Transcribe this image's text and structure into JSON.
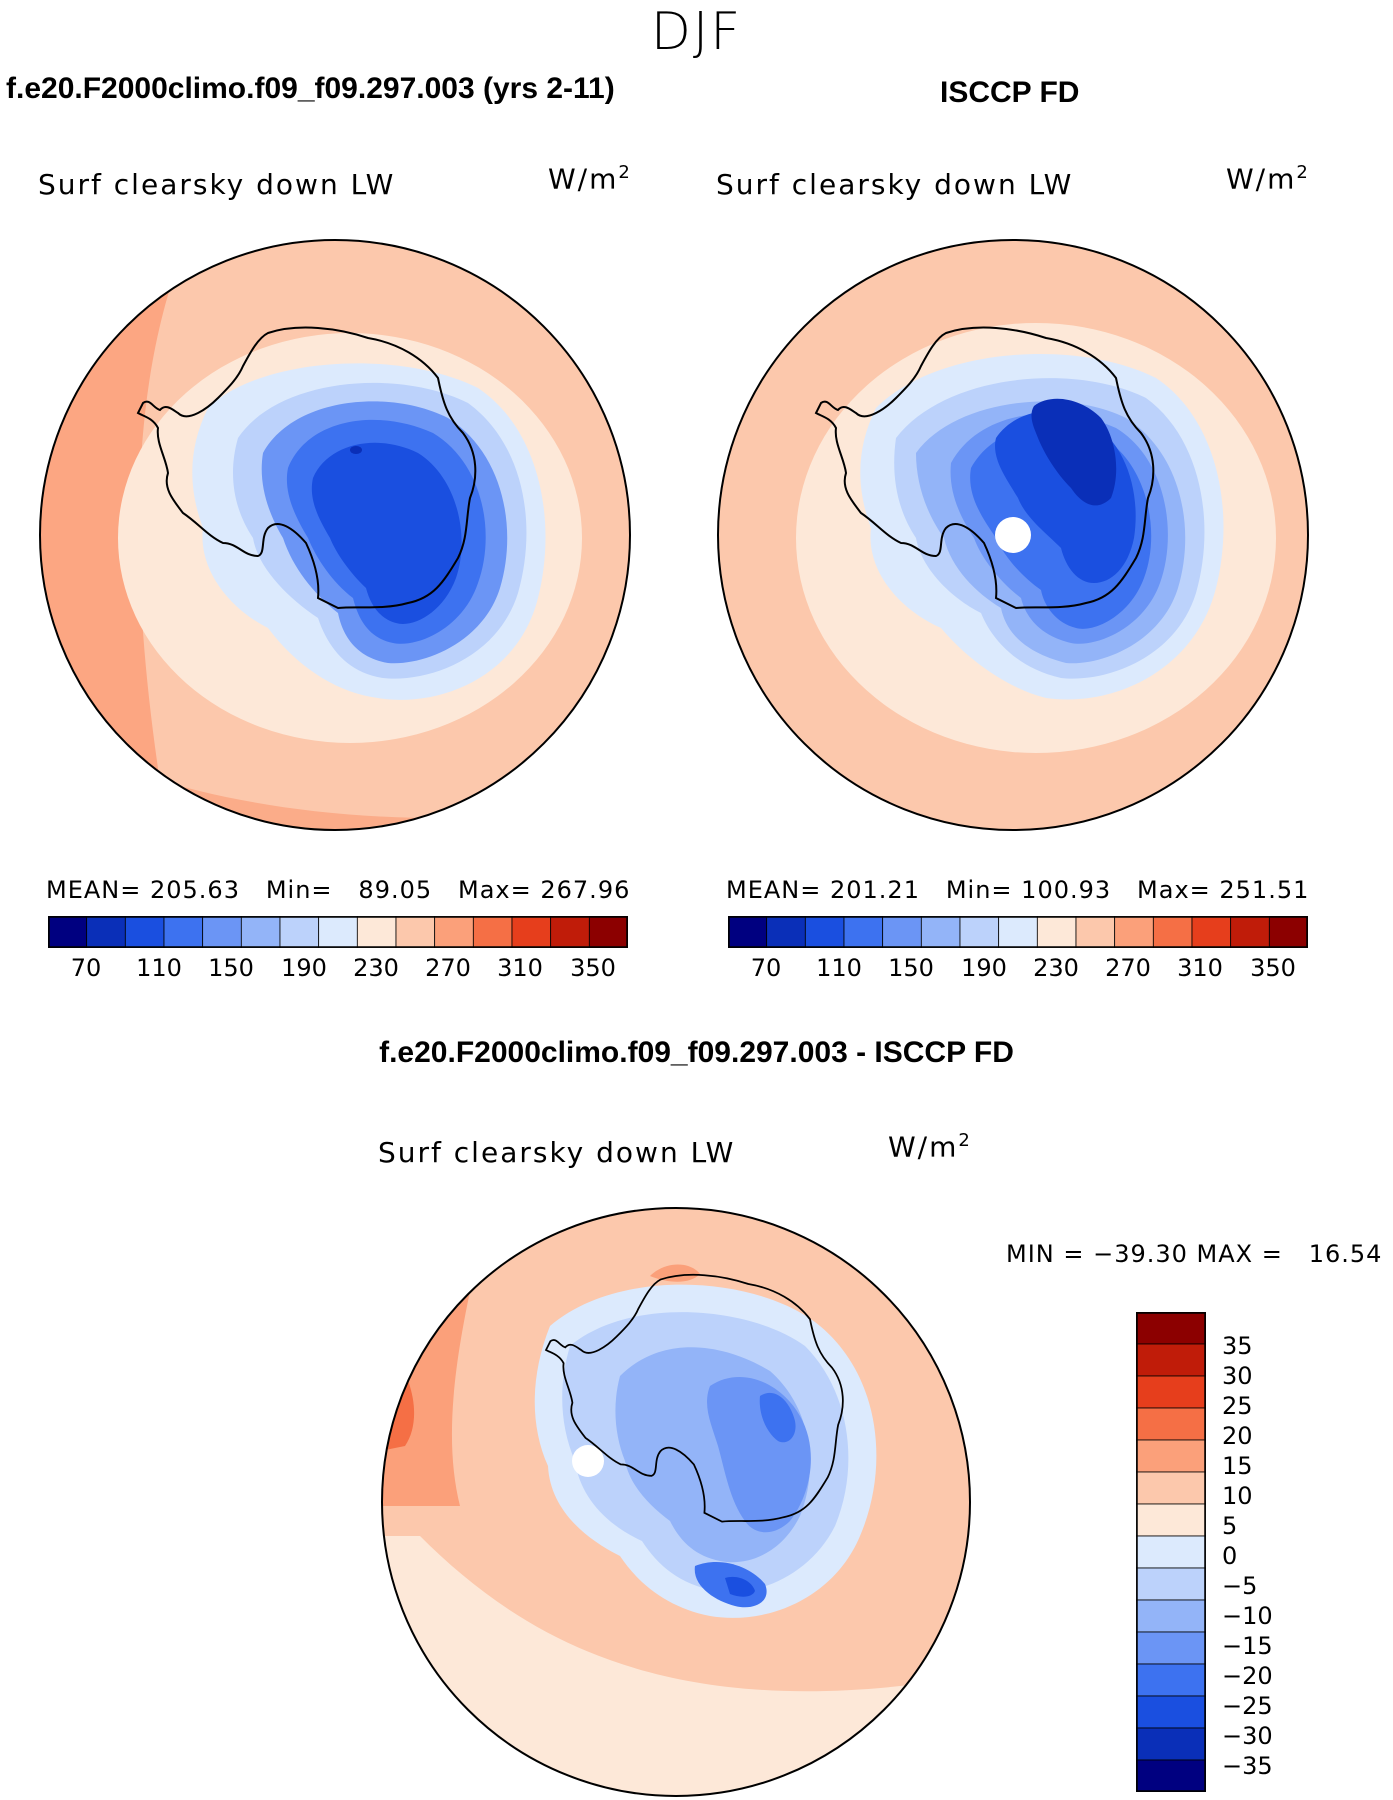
{
  "season": "DJF",
  "panels": [
    {
      "title": "f.e20.F2000climo.f09_f09.297.003 (yrs 2-11)",
      "variable": "Surf clearsky down LW",
      "units": "W/m",
      "units_exp": "2",
      "stats_text": "MEAN= 205.63   Min=   89.05   Max= 267.96",
      "mean": 205.63,
      "min": 89.05,
      "max": 267.96
    },
    {
      "title": "ISCCP FD",
      "variable": "Surf clearsky down LW",
      "units": "W/m",
      "units_exp": "2",
      "stats_text": "MEAN= 201.21   Min= 100.93   Max= 251.51",
      "mean": 201.21,
      "min": 100.93,
      "max": 251.51
    }
  ],
  "diff_panel": {
    "title": "f.e20.F2000climo.f09_f09.297.003 - ISCCP FD",
    "variable": "Surf clearsky down LW",
    "units": "W/m",
    "units_exp": "2",
    "minmax_text": "MIN = −39.30 MAX =   16.54",
    "min": -39.3,
    "max": 16.54
  },
  "colorbar_main": {
    "ticks": [
      "70",
      "110",
      "150",
      "190",
      "230",
      "270",
      "310",
      "350"
    ],
    "colors": [
      "#000080",
      "#0a2fb8",
      "#1a4fe0",
      "#3d72f0",
      "#6b95f5",
      "#93b4f8",
      "#bcd2fb",
      "#dceafd",
      "#fde8d8",
      "#fcc8ac",
      "#fba07a",
      "#f56f45",
      "#e63e1c",
      "#c01c09",
      "#8c0000"
    ]
  },
  "colorbar_diff": {
    "labels": [
      "35",
      "30",
      "25",
      "20",
      "15",
      "10",
      "5",
      "0",
      "−5",
      "−10",
      "−15",
      "−20",
      "−25",
      "−30",
      "−35"
    ],
    "colors": [
      "#8c0000",
      "#c01c09",
      "#e63e1c",
      "#f56f45",
      "#fba07a",
      "#fcc8ac",
      "#fde8d8",
      "#dceafd",
      "#bcd2fb",
      "#93b4f8",
      "#6b95f5",
      "#3d72f0",
      "#1a4fe0",
      "#0a2fb8",
      "#000080"
    ]
  }
}
